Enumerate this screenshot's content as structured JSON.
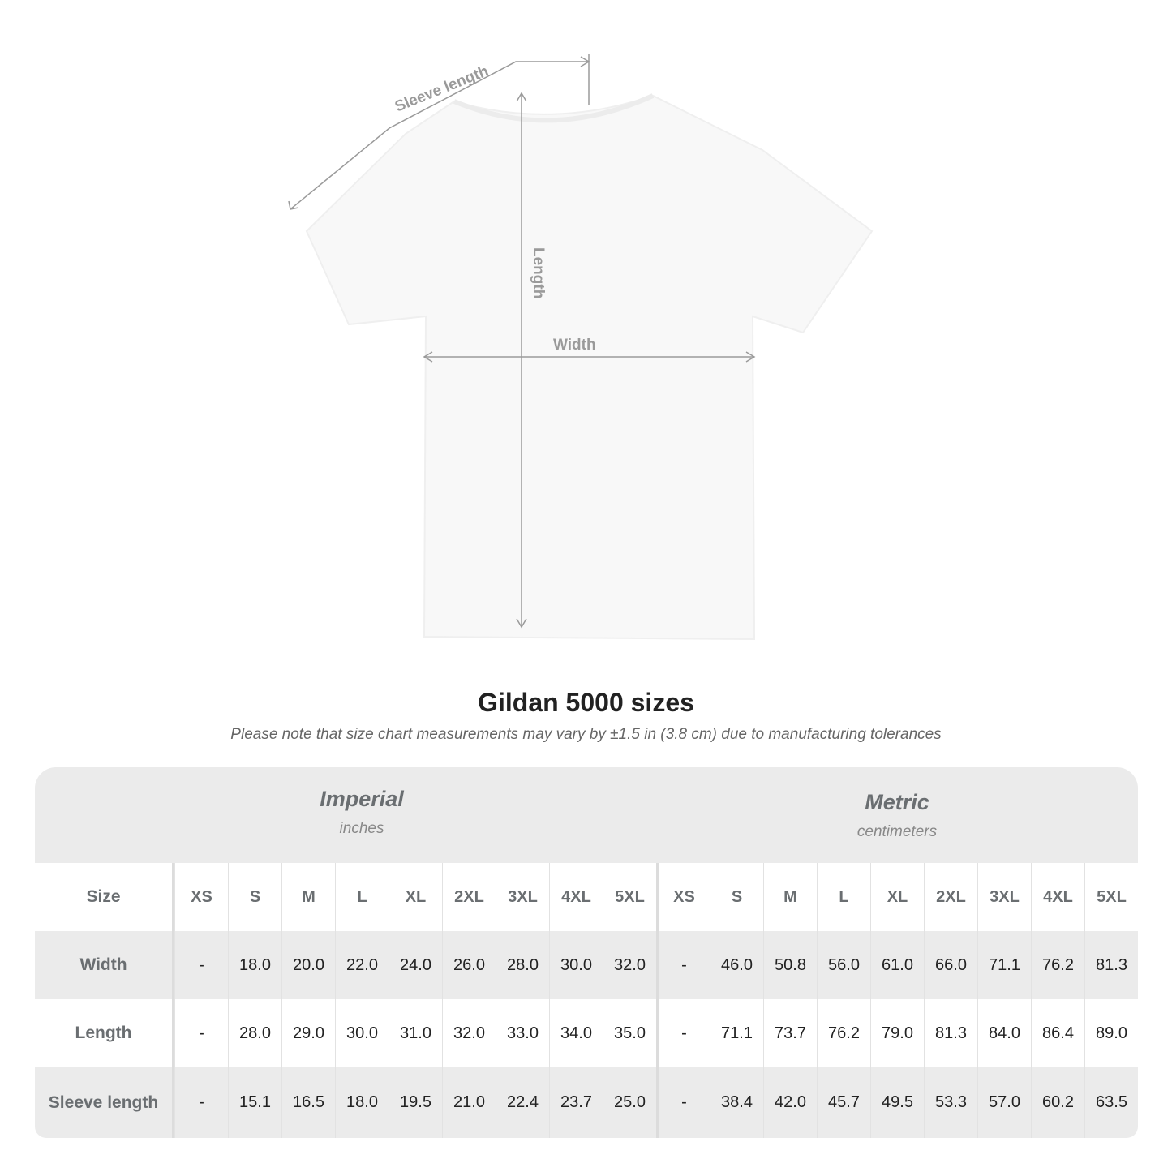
{
  "diagram": {
    "labels": {
      "sleeve": "Sleeve length",
      "length": "Length",
      "width": "Width"
    },
    "colors": {
      "line": "#9a9a9a",
      "shirt": "#f8f8f8"
    }
  },
  "title": "Gildan 5000 sizes",
  "subtitle": "Please note that size chart measurements may vary by ±1.5 in (3.8 cm) due to manufacturing tolerances",
  "imperial": {
    "name": "Imperial",
    "unit": "inches"
  },
  "metric": {
    "name": "Metric",
    "unit": "centimeters"
  },
  "size_label": "Size",
  "sizes": [
    "XS",
    "S",
    "M",
    "L",
    "XL",
    "2XL",
    "3XL",
    "4XL",
    "5XL"
  ],
  "rows": [
    {
      "label": "Width",
      "imperial": [
        "-",
        "18.0",
        "20.0",
        "22.0",
        "24.0",
        "26.0",
        "28.0",
        "30.0",
        "32.0"
      ],
      "metric": [
        "-",
        "46.0",
        "50.8",
        "56.0",
        "61.0",
        "66.0",
        "71.1",
        "76.2",
        "81.3"
      ]
    },
    {
      "label": "Length",
      "imperial": [
        "-",
        "28.0",
        "29.0",
        "30.0",
        "31.0",
        "32.0",
        "33.0",
        "34.0",
        "35.0"
      ],
      "metric": [
        "-",
        "71.1",
        "73.7",
        "76.2",
        "79.0",
        "81.3",
        "84.0",
        "86.4",
        "89.0"
      ]
    },
    {
      "label": "Sleeve length",
      "imperial": [
        "-",
        "15.1",
        "16.5",
        "18.0",
        "19.5",
        "21.0",
        "22.4",
        "23.7",
        "25.0"
      ],
      "metric": [
        "-",
        "38.4",
        "42.0",
        "45.7",
        "49.5",
        "53.3",
        "57.0",
        "60.2",
        "63.5"
      ]
    }
  ]
}
